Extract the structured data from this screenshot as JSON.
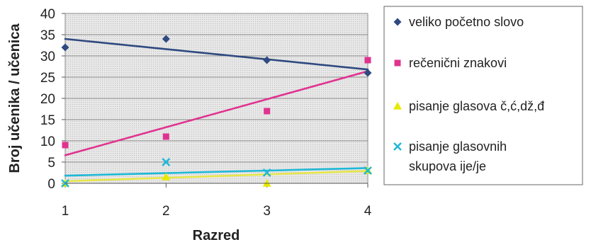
{
  "chart_data": {
    "type": "scatter",
    "title": "",
    "xlabel": "Razred",
    "ylabel": "Broj učenika / učenica",
    "x": [
      1,
      2,
      3,
      4
    ],
    "xlim": [
      1,
      4
    ],
    "ylim": [
      0,
      40
    ],
    "ymajor": 5,
    "x_ticks": [
      "1",
      "2",
      "3",
      "4"
    ],
    "y_ticks": [
      "0",
      "5",
      "10",
      "15",
      "20",
      "25",
      "30",
      "35",
      "40"
    ],
    "grid": "horizontal",
    "plot_background": "dotted grey",
    "legend_position": "right",
    "trendlines": "linear",
    "series": [
      {
        "name": "veliko početno slovo",
        "legend_lines": [
          "veliko početno slovo"
        ],
        "marker": "diamond",
        "color": "#2f4a80",
        "trend_color": "#2f4a80",
        "values": [
          32,
          34,
          29,
          26
        ],
        "trend": [
          34,
          31.6,
          29.2,
          26.8
        ]
      },
      {
        "name": "rečenični znakovi",
        "legend_lines": [
          "rečenični znakovi"
        ],
        "marker": "square",
        "color": "#e0338f",
        "trend_color": "#e0338f",
        "values": [
          9,
          11,
          17,
          29
        ],
        "trend": [
          6.6,
          13.2,
          19.8,
          26.4
        ]
      },
      {
        "name": "pisanje glasova č,ć,dž,đ",
        "legend_lines": [
          "pisanje glasova č,ć,dž,đ"
        ],
        "marker": "triangle",
        "color": "#e8e800",
        "trend_color": "#e6e64a",
        "values": [
          0,
          1.5,
          0,
          3
        ],
        "trend": [
          0.5,
          1.3,
          2.1,
          2.9
        ]
      },
      {
        "name": "pisanje glasovnih skupova ije/je",
        "legend_lines": [
          "pisanje glasovnih",
          "skupova ije/je"
        ],
        "marker": "x",
        "color": "#1fb8d6",
        "trend_color": "#1fb8d6",
        "values": [
          0,
          5,
          2.5,
          3
        ],
        "trend": [
          1.8,
          2.4,
          3,
          3.6
        ]
      }
    ]
  }
}
